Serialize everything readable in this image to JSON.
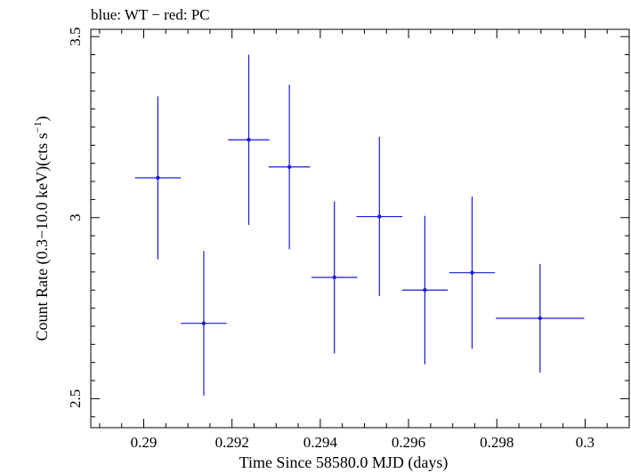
{
  "chart_data": {
    "type": "scatter",
    "title": "blue: WT − red: PC",
    "xlabel": "Time Since 58580.0 MJD (days)",
    "ylabel_parts": {
      "main": "Count Rate (0.3−10.0 keV)(cts s",
      "sup": "−1",
      "tail": ")"
    },
    "xlim": [
      0.2888,
      0.301
    ],
    "ylim": [
      2.42,
      3.52
    ],
    "x_ticks": [
      0.29,
      0.292,
      0.294,
      0.296,
      0.298,
      0.3
    ],
    "x_tick_labels": [
      "0.29",
      "0.292",
      "0.294",
      "0.296",
      "0.298",
      "0.3"
    ],
    "y_ticks": [
      2.5,
      3.0,
      3.5
    ],
    "y_tick_labels": [
      "2.5",
      "3",
      "3.5"
    ],
    "grid": false,
    "series": [
      {
        "color": "#1a1adb",
        "points": [
          {
            "x": 0.29032,
            "xerr": 0.00052,
            "y": 3.11,
            "yerr": 0.225
          },
          {
            "x": 0.29136,
            "xerr": 0.00052,
            "y": 2.708,
            "yerr": 0.2
          },
          {
            "x": 0.29238,
            "xerr": 0.00047,
            "y": 3.215,
            "yerr": 0.235
          },
          {
            "x": 0.2933,
            "xerr": 0.00047,
            "y": 3.14,
            "yerr": 0.227
          },
          {
            "x": 0.29432,
            "xerr": 0.00052,
            "y": 2.835,
            "yerr": 0.21
          },
          {
            "x": 0.29534,
            "xerr": 0.00052,
            "y": 3.003,
            "yerr": 0.22
          },
          {
            "x": 0.29637,
            "xerr": 0.00052,
            "y": 2.8,
            "yerr": 0.205
          },
          {
            "x": 0.29744,
            "xerr": 0.00052,
            "y": 2.848,
            "yerr": 0.21
          },
          {
            "x": 0.29898,
            "xerr": 0.001,
            "y": 2.722,
            "yerr": 0.15
          }
        ]
      }
    ]
  }
}
